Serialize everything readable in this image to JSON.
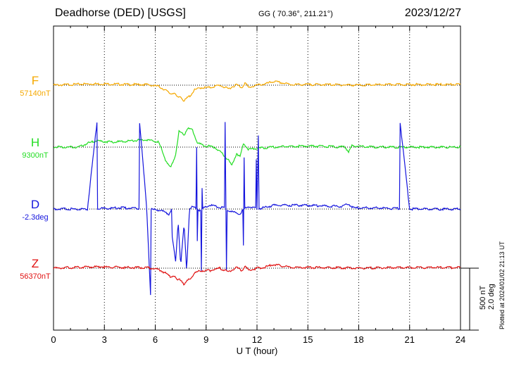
{
  "header": {
    "station": "Deadhorse (DED)  [USGS]",
    "coords": "GG ( 70.36°, 211.21°)",
    "date": "2023/12/27"
  },
  "scale": {
    "line1": "500 nT",
    "line2": "2.0 deg"
  },
  "plotted": "Plotted at 2024/01/02 21:13 UT",
  "chart_data": {
    "type": "line",
    "title": "Deadhorse (DED)  [USGS]",
    "xlabel": "U T (hour)",
    "xlim": [
      0,
      24
    ],
    "xticks": [
      0,
      3,
      6,
      9,
      12,
      15,
      18,
      21,
      24
    ],
    "grid": "vertical dotted lines every 3 hours; dotted baseline per component",
    "units_note": "values are deviations from each component's baseline; 500 nT / 2.0 deg scale bar",
    "series": [
      {
        "name": "F",
        "baseline_label": "57140nT",
        "color": "#f5a800",
        "x": [
          0,
          2,
          3,
          4.5,
          5.5,
          6.2,
          6.6,
          6.9,
          7.1,
          7.3,
          7.5,
          7.7,
          7.9,
          8.1,
          8.3,
          8.7,
          9.2,
          9.8,
          10.3,
          10.8,
          11.1,
          11.3,
          11.5,
          12,
          12.5,
          13,
          14,
          16,
          18,
          20,
          22,
          24
        ],
        "values": [
          0,
          10,
          10,
          5,
          5,
          -10,
          -40,
          -70,
          -60,
          -100,
          -90,
          -130,
          -100,
          -80,
          -40,
          -20,
          -20,
          0,
          -30,
          5,
          -20,
          20,
          -20,
          0,
          10,
          30,
          5,
          5,
          0,
          5,
          5,
          5
        ]
      },
      {
        "name": "H",
        "baseline_label": "9300nT",
        "color": "#22dd22",
        "x": [
          0,
          1.5,
          2,
          2.5,
          3.5,
          4.5,
          5.5,
          6.2,
          6.6,
          6.9,
          7.2,
          7.4,
          7.7,
          7.9,
          8.2,
          8.5,
          9,
          9.5,
          10,
          10.3,
          10.5,
          10.8,
          11,
          11.2,
          11.5,
          12,
          13,
          15,
          17.2,
          17.4,
          17.6,
          19,
          21,
          24
        ],
        "values": [
          0,
          0,
          30,
          50,
          40,
          50,
          60,
          40,
          -100,
          -170,
          -60,
          130,
          100,
          150,
          140,
          30,
          10,
          0,
          -60,
          -100,
          -150,
          -50,
          -80,
          30,
          -20,
          -10,
          0,
          10,
          0,
          -40,
          10,
          0,
          0,
          0
        ]
      },
      {
        "name": "D",
        "baseline_label": "-2.3deg",
        "color": "#1515dd",
        "x": [
          0,
          2,
          4,
          5.5,
          6.3,
          6.8,
          7.0,
          7.2,
          7.35,
          7.5,
          7.7,
          7.85,
          8.0,
          8.2,
          8.6,
          9.2,
          10,
          10.5,
          11,
          11.2,
          11.5,
          12,
          13,
          15,
          17,
          17.4,
          17.7,
          19,
          21,
          24
        ],
        "values": [
          0,
          0,
          10,
          0,
          -10,
          -40,
          -0.9,
          -1.7,
          -0.4,
          -1.8,
          -0.5,
          -2.0,
          -0.2,
          20,
          -10,
          30,
          10,
          -20,
          -40,
          -1.2,
          20,
          0,
          30,
          30,
          20,
          40,
          10,
          10,
          0,
          0
        ]
      },
      {
        "name": "Z",
        "baseline_label": "56370nT",
        "color": "#e01010",
        "x": [
          0,
          2,
          3,
          4.5,
          5.5,
          6.2,
          6.6,
          6.9,
          7.1,
          7.3,
          7.5,
          7.7,
          7.9,
          8.1,
          8.3,
          8.7,
          9.2,
          9.8,
          10.3,
          10.8,
          11.1,
          11.3,
          11.5,
          12,
          12.5,
          13,
          14,
          16,
          18,
          20,
          22,
          24
        ],
        "values": [
          0,
          10,
          10,
          5,
          5,
          -10,
          -40,
          -70,
          -60,
          -100,
          -90,
          -130,
          -100,
          -80,
          -40,
          -20,
          -20,
          0,
          -30,
          5,
          -20,
          20,
          -20,
          0,
          10,
          30,
          5,
          5,
          0,
          5,
          5,
          5
        ]
      }
    ]
  }
}
